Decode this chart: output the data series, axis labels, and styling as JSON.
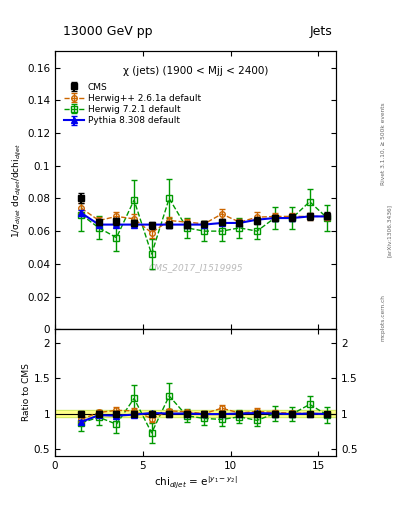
{
  "title_top": "13000 GeV pp",
  "title_right": "Jets",
  "plot_title": "χ (jets) (1900 < Mjj < 2400)",
  "watermark": "CMS_2017_I1519995",
  "rivet_label": "Rivet 3.1.10, ≥ 500k events",
  "arxiv_label": "[arXiv:1306.3436]",
  "mcplots_label": "mcplots.cern.ch",
  "xlabel": "chi$_{dijet}$ = e$^{|y_{1}-y_{2}|}$",
  "ylabel_main": "1/σ$_{dijet}$ dσ$_{dijet}$/dchi$_{dijet}$",
  "ylabel_ratio": "Ratio to CMS",
  "xlim": [
    0,
    16
  ],
  "ylim_main": [
    0,
    0.17
  ],
  "ylim_ratio": [
    0.4,
    2.2
  ],
  "yticks_main": [
    0,
    0.02,
    0.04,
    0.06,
    0.08,
    0.1,
    0.12,
    0.14,
    0.16
  ],
  "yticks_ratio": [
    0.5,
    1.0,
    1.5,
    2.0
  ],
  "xticks": [
    0,
    5,
    10,
    15
  ],
  "cms_x": [
    1.5,
    2.5,
    3.5,
    4.5,
    5.5,
    6.5,
    7.5,
    8.5,
    9.5,
    10.5,
    11.5,
    12.5,
    13.5,
    14.5,
    15.5
  ],
  "cms_y": [
    0.0805,
    0.0655,
    0.066,
    0.065,
    0.0635,
    0.064,
    0.064,
    0.0645,
    0.0655,
    0.065,
    0.0665,
    0.068,
    0.0685,
    0.069,
    0.0695
  ],
  "cms_yerr": [
    0.003,
    0.002,
    0.002,
    0.002,
    0.002,
    0.002,
    0.002,
    0.002,
    0.002,
    0.002,
    0.002,
    0.002,
    0.002,
    0.002,
    0.002
  ],
  "herwig1_x": [
    1.5,
    2.5,
    3.5,
    4.5,
    5.5,
    6.5,
    7.5,
    8.5,
    9.5,
    10.5,
    11.5,
    12.5,
    13.5,
    14.5,
    15.5
  ],
  "herwig1_y": [
    0.074,
    0.0665,
    0.069,
    0.0675,
    0.059,
    0.0665,
    0.0655,
    0.0645,
    0.0705,
    0.0655,
    0.0685,
    0.069,
    0.069,
    0.069,
    0.069
  ],
  "herwig1_yerr": [
    0.003,
    0.002,
    0.003,
    0.003,
    0.003,
    0.002,
    0.002,
    0.002,
    0.003,
    0.002,
    0.003,
    0.002,
    0.002,
    0.002,
    0.002
  ],
  "herwig2_x": [
    1.5,
    2.5,
    3.5,
    4.5,
    5.5,
    6.5,
    7.5,
    8.5,
    9.5,
    10.5,
    11.5,
    12.5,
    13.5,
    14.5,
    15.5
  ],
  "herwig2_y": [
    0.07,
    0.062,
    0.056,
    0.079,
    0.046,
    0.08,
    0.062,
    0.06,
    0.06,
    0.062,
    0.06,
    0.068,
    0.068,
    0.078,
    0.068
  ],
  "herwig2_yerr": [
    0.01,
    0.007,
    0.008,
    0.012,
    0.009,
    0.012,
    0.006,
    0.006,
    0.006,
    0.006,
    0.005,
    0.007,
    0.007,
    0.008,
    0.008
  ],
  "pythia_x": [
    1.5,
    2.5,
    3.5,
    4.5,
    5.5,
    6.5,
    7.5,
    8.5,
    9.5,
    10.5,
    11.5,
    12.5,
    13.5,
    14.5,
    15.5
  ],
  "pythia_y": [
    0.071,
    0.064,
    0.064,
    0.064,
    0.064,
    0.064,
    0.064,
    0.064,
    0.065,
    0.065,
    0.067,
    0.068,
    0.068,
    0.069,
    0.069
  ],
  "pythia_yerr": [
    0.002,
    0.001,
    0.001,
    0.001,
    0.001,
    0.001,
    0.001,
    0.001,
    0.001,
    0.001,
    0.001,
    0.001,
    0.001,
    0.001,
    0.001
  ],
  "cms_color": "#000000",
  "herwig1_color": "#cc6600",
  "herwig2_color": "#009900",
  "pythia_color": "#0000ee",
  "band_color": "#ffff88",
  "band_edge_color": "#aadd00"
}
